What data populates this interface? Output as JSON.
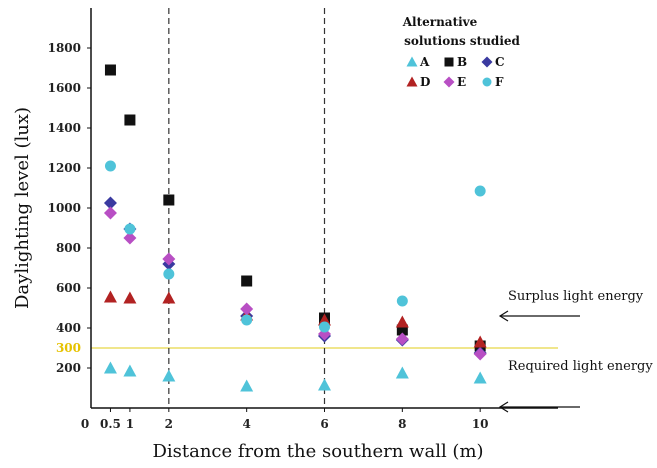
{
  "chart_data": {
    "type": "scatter",
    "xlabel": "Distance from the southern wall (m)",
    "ylabel": "Daylighting level (lux)",
    "xlim": [
      0,
      12
    ],
    "ylim": [
      0,
      2000
    ],
    "x_ticks": [
      {
        "value": 0,
        "label": "0"
      },
      {
        "value": 0.5,
        "label": "0.5"
      },
      {
        "value": 1,
        "label": "1"
      },
      {
        "value": 2,
        "label": "2"
      },
      {
        "value": 4,
        "label": "4"
      },
      {
        "value": 6,
        "label": "6"
      },
      {
        "value": 8,
        "label": "8"
      },
      {
        "value": 10,
        "label": "10"
      }
    ],
    "y_ticks": [
      {
        "value": 200,
        "label": "200"
      },
      {
        "value": 400,
        "label": "400"
      },
      {
        "value": 600,
        "label": "600"
      },
      {
        "value": 800,
        "label": "800"
      },
      {
        "value": 1000,
        "label": "1000"
      },
      {
        "value": 1200,
        "label": "1200"
      },
      {
        "value": 1400,
        "label": "1400"
      },
      {
        "value": 1600,
        "label": "1600"
      },
      {
        "value": 1800,
        "label": "1800"
      }
    ],
    "vertical_dashed_lines_x": [
      2,
      6
    ],
    "threshold": {
      "value": 300,
      "label": "300",
      "color": "#f0e68c"
    },
    "legend": {
      "title_line1": "Alternative",
      "title_line2": "solutions studied",
      "position": "top-right"
    },
    "annotations": {
      "surplus": "Surplus light energy",
      "required": "Required light energy"
    },
    "series": [
      {
        "name": "A",
        "marker": "triangle",
        "color": "#4fc3d9",
        "points": [
          [
            0.5,
            200
          ],
          [
            1,
            185
          ],
          [
            2,
            160
          ],
          [
            4,
            110
          ],
          [
            6,
            115
          ],
          [
            8,
            175
          ],
          [
            10,
            150
          ]
        ]
      },
      {
        "name": "B",
        "marker": "square",
        "color": "#111111",
        "points": [
          [
            0.5,
            1690
          ],
          [
            1,
            1440
          ],
          [
            2,
            1040
          ],
          [
            4,
            635
          ],
          [
            6,
            450
          ],
          [
            8,
            390
          ],
          [
            10,
            310
          ]
        ]
      },
      {
        "name": "C",
        "marker": "diamond",
        "color": "#3a3aa0",
        "points": [
          [
            0.5,
            1025
          ],
          [
            1,
            895
          ],
          [
            2,
            720
          ],
          [
            4,
            460
          ],
          [
            6,
            360
          ],
          [
            8,
            340
          ],
          [
            10,
            275
          ]
        ]
      },
      {
        "name": "D",
        "marker": "triangle",
        "color": "#b22222",
        "points": [
          [
            0.5,
            555
          ],
          [
            1,
            550
          ],
          [
            2,
            550
          ],
          [
            4,
            465
          ],
          [
            6,
            440
          ],
          [
            8,
            430
          ],
          [
            10,
            330
          ]
        ]
      },
      {
        "name": "E",
        "marker": "diamond",
        "color": "#b84fc4",
        "points": [
          [
            0.5,
            975
          ],
          [
            1,
            850
          ],
          [
            2,
            745
          ],
          [
            4,
            495
          ],
          [
            6,
            370
          ],
          [
            8,
            345
          ],
          [
            10,
            270
          ]
        ]
      },
      {
        "name": "F",
        "marker": "circle",
        "color": "#4fc3d9",
        "points": [
          [
            0.5,
            1210
          ],
          [
            1,
            895
          ],
          [
            2,
            670
          ],
          [
            4,
            440
          ],
          [
            6,
            405
          ],
          [
            8,
            535
          ],
          [
            10,
            1085
          ]
        ]
      }
    ]
  }
}
